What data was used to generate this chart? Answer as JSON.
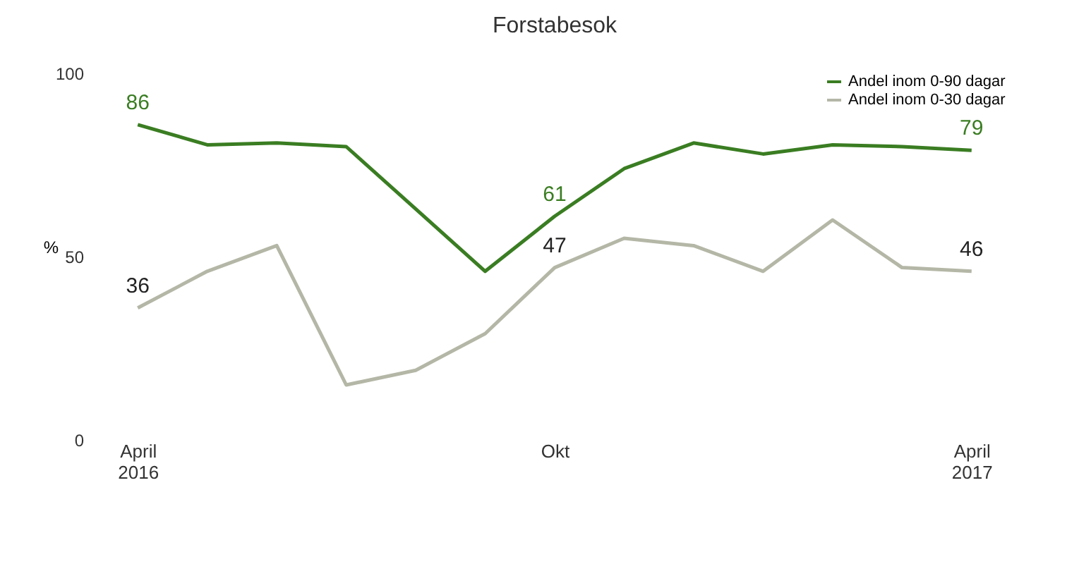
{
  "chart_data": {
    "type": "line",
    "title": "Forstabesok",
    "ylabel": "%",
    "categories": [
      "April 2016",
      null,
      null,
      null,
      null,
      null,
      "Okt",
      null,
      null,
      null,
      null,
      null,
      "April 2017"
    ],
    "series": [
      {
        "name": "Andel inom 0-90 dagar",
        "color": "#3a7d22",
        "values": [
          86,
          80.5,
          81,
          80,
          63,
          46,
          61,
          74,
          81,
          78,
          80.5,
          80,
          79
        ],
        "value_labels": [
          "86",
          null,
          null,
          null,
          null,
          null,
          "61",
          null,
          null,
          null,
          null,
          null,
          "79"
        ]
      },
      {
        "name": "Andel inom 0-30 dagar",
        "color": "#b4b7a6",
        "values": [
          36,
          46,
          53,
          15,
          19,
          29,
          47,
          55,
          53,
          46,
          60,
          47,
          46
        ],
        "value_labels": [
          "36",
          null,
          null,
          null,
          null,
          null,
          "47",
          null,
          null,
          null,
          null,
          null,
          "46"
        ]
      }
    ],
    "ylim": [
      0,
      100
    ],
    "yticks": [
      0,
      50,
      100
    ],
    "grid": false,
    "legend": "top right",
    "marker": "none",
    "line_style": "solid"
  }
}
